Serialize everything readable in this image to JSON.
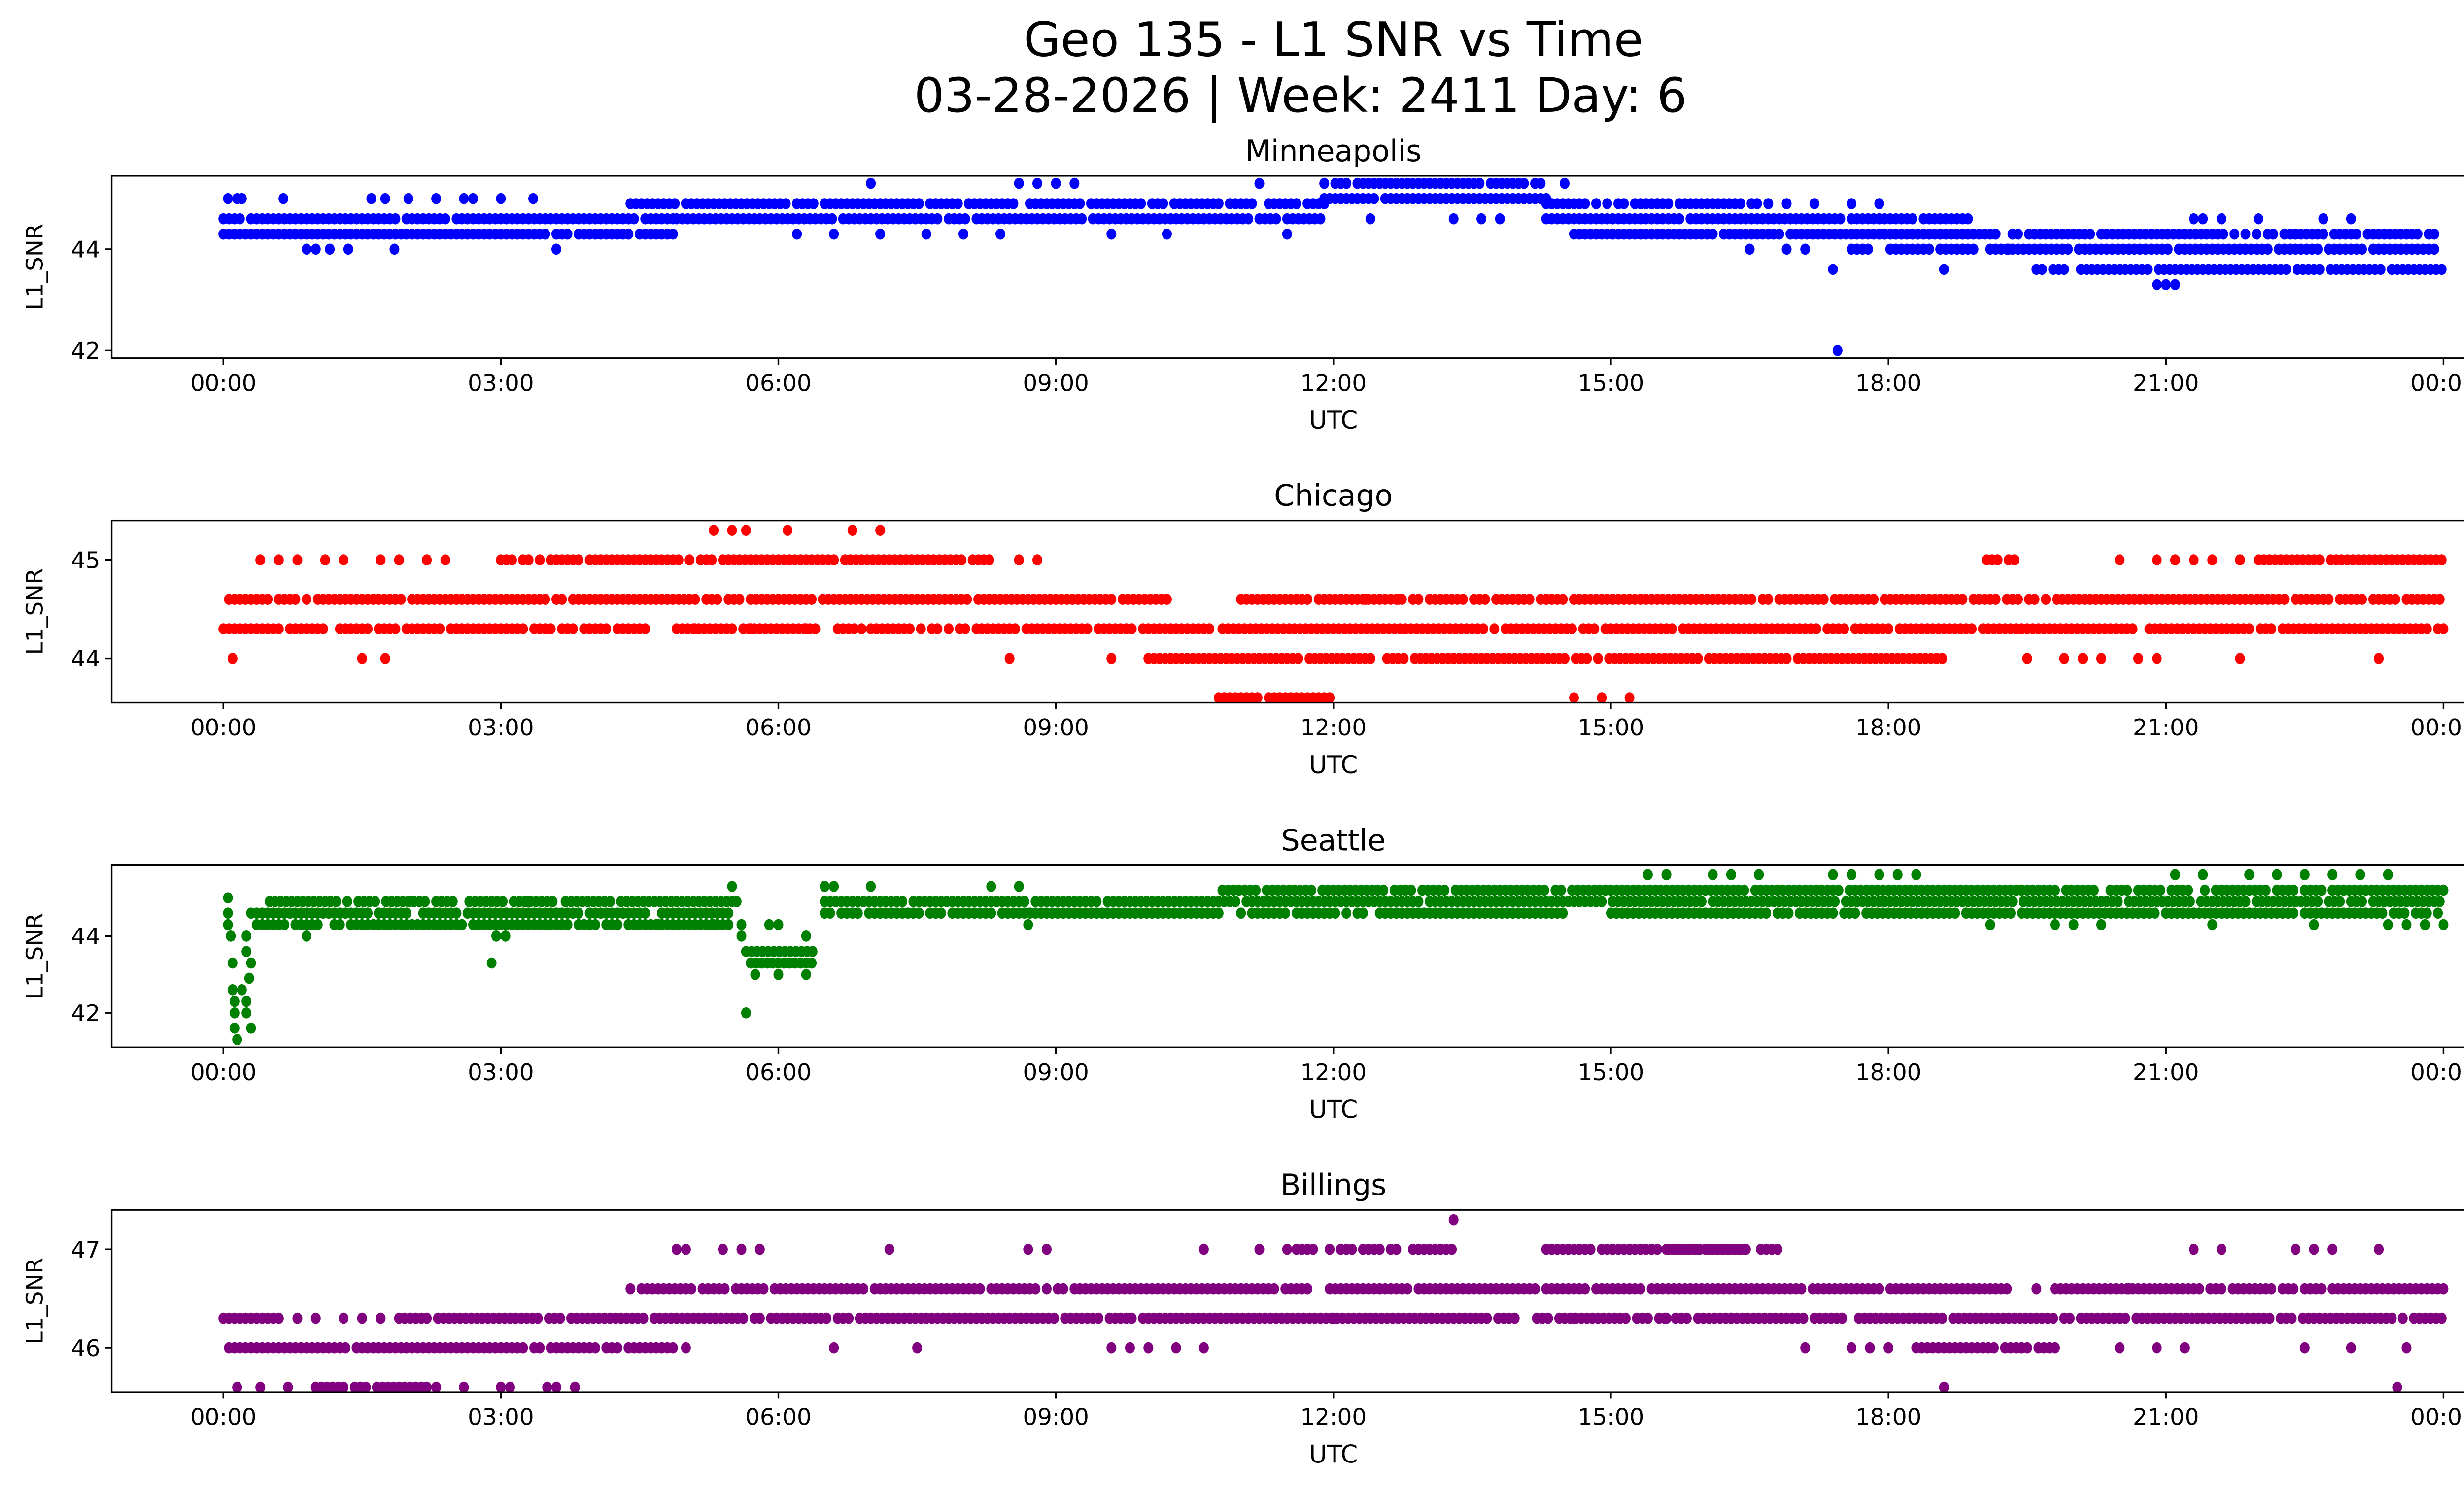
{
  "chart_data": {
    "type": "scatter",
    "title": "Geo 135 - L1 SNR vs Time",
    "subtitle": "03-28-2026 | Week: 2411 Day: 6",
    "x_tick_labels": [
      "00:00",
      "03:00",
      "06:00",
      "09:00",
      "12:00",
      "15:00",
      "18:00",
      "21:00",
      "00:00"
    ],
    "x_range_hours": [
      -1.2,
      25.2
    ],
    "xlabel": "UTC",
    "ylabel": "L1_SNR",
    "grid": false,
    "legend": "none",
    "panels": [
      {
        "name": "Minneapolis",
        "color": "#0000ff",
        "ylim": [
          41.85,
          45.45
        ],
        "yticks": [
          42,
          44
        ],
        "runs": [
          [
            0.0,
            4.9,
            44.3
          ],
          [
            0.0,
            4.9,
            44.6
          ],
          [
            4.9,
            11.9,
            44.6
          ],
          [
            4.4,
            11.9,
            44.9
          ],
          [
            11.9,
            14.3,
            45.0
          ],
          [
            11.9,
            14.3,
            45.3
          ],
          [
            14.3,
            16.6,
            44.9
          ],
          [
            14.3,
            18.9,
            44.6
          ],
          [
            14.6,
            18.9,
            44.3
          ],
          [
            17.9,
            24.0,
            44.3
          ],
          [
            17.6,
            24.0,
            44.0
          ],
          [
            19.6,
            24.0,
            43.6
          ]
        ],
        "points": [
          [
            0.05,
            45.0
          ],
          [
            0.15,
            45.0
          ],
          [
            0.2,
            45.0
          ],
          [
            0.65,
            45.0
          ],
          [
            1.6,
            45.0
          ],
          [
            1.75,
            45.0
          ],
          [
            2.0,
            45.0
          ],
          [
            2.3,
            45.0
          ],
          [
            2.6,
            45.0
          ],
          [
            2.7,
            45.0
          ],
          [
            3.0,
            45.0
          ],
          [
            3.35,
            45.0
          ],
          [
            0.9,
            44.0
          ],
          [
            1.0,
            44.0
          ],
          [
            1.15,
            44.0
          ],
          [
            1.35,
            44.0
          ],
          [
            1.85,
            44.0
          ],
          [
            3.6,
            44.0
          ],
          [
            7.0,
            45.3
          ],
          [
            8.6,
            45.3
          ],
          [
            8.8,
            45.3
          ],
          [
            9.0,
            45.3
          ],
          [
            9.2,
            45.3
          ],
          [
            11.2,
            45.3
          ],
          [
            14.5,
            45.3
          ],
          [
            6.2,
            44.3
          ],
          [
            6.6,
            44.3
          ],
          [
            7.1,
            44.3
          ],
          [
            7.6,
            44.3
          ],
          [
            8.0,
            44.3
          ],
          [
            8.4,
            44.3
          ],
          [
            9.6,
            44.3
          ],
          [
            10.2,
            44.3
          ],
          [
            11.5,
            44.3
          ],
          [
            12.4,
            44.6
          ],
          [
            13.3,
            44.6
          ],
          [
            13.6,
            44.6
          ],
          [
            13.8,
            44.6
          ],
          [
            15.5,
            44.9
          ],
          [
            16.7,
            44.9
          ],
          [
            16.9,
            44.9
          ],
          [
            17.2,
            44.9
          ],
          [
            17.6,
            44.9
          ],
          [
            17.9,
            44.9
          ],
          [
            16.5,
            44.0
          ],
          [
            16.9,
            44.0
          ],
          [
            17.1,
            44.0
          ],
          [
            17.4,
            43.6
          ],
          [
            17.45,
            42.0
          ],
          [
            18.6,
            43.6
          ],
          [
            18.8,
            44.0
          ],
          [
            19.3,
            44.0
          ],
          [
            20.9,
            43.3
          ],
          [
            21.0,
            43.3
          ],
          [
            21.1,
            43.3
          ],
          [
            21.3,
            44.6
          ],
          [
            21.4,
            44.6
          ],
          [
            21.6,
            44.6
          ],
          [
            22.0,
            44.6
          ],
          [
            22.7,
            44.6
          ],
          [
            23.0,
            44.6
          ]
        ]
      },
      {
        "name": "Chicago",
        "color": "#ff0000",
        "ylim": [
          43.55,
          45.4
        ],
        "yticks": [
          44,
          45
        ],
        "runs": [
          [
            0.0,
            10.2,
            44.6
          ],
          [
            0.0,
            4.6,
            44.3
          ],
          [
            4.9,
            10.7,
            44.3
          ],
          [
            10.8,
            24.0,
            44.3
          ],
          [
            11.0,
            24.0,
            44.6
          ],
          [
            3.0,
            8.3,
            45.0
          ],
          [
            10.0,
            13.8,
            44.0
          ],
          [
            13.0,
            18.6,
            44.0
          ],
          [
            10.7,
            11.2,
            43.6
          ],
          [
            11.3,
            12.0,
            43.6
          ],
          [
            22.0,
            24.0,
            45.0
          ],
          [
            19.0,
            19.4,
            45.0
          ]
        ],
        "points": [
          [
            0.1,
            44.0
          ],
          [
            1.5,
            44.0
          ],
          [
            1.75,
            44.0
          ],
          [
            8.5,
            44.0
          ],
          [
            9.6,
            44.0
          ],
          [
            19.5,
            44.0
          ],
          [
            19.9,
            44.0
          ],
          [
            20.1,
            44.0
          ],
          [
            20.3,
            44.0
          ],
          [
            20.7,
            44.0
          ],
          [
            20.9,
            44.0
          ],
          [
            21.8,
            44.0
          ],
          [
            23.3,
            44.0
          ],
          [
            0.4,
            45.0
          ],
          [
            0.6,
            45.0
          ],
          [
            0.8,
            45.0
          ],
          [
            1.1,
            45.0
          ],
          [
            1.3,
            45.0
          ],
          [
            1.7,
            45.0
          ],
          [
            1.9,
            45.0
          ],
          [
            2.2,
            45.0
          ],
          [
            2.4,
            45.0
          ],
          [
            8.6,
            45.0
          ],
          [
            8.8,
            45.0
          ],
          [
            5.3,
            45.3
          ],
          [
            5.5,
            45.3
          ],
          [
            5.65,
            45.3
          ],
          [
            6.1,
            45.3
          ],
          [
            6.8,
            45.3
          ],
          [
            7.1,
            45.3
          ],
          [
            20.5,
            45.0
          ],
          [
            20.9,
            45.0
          ],
          [
            21.1,
            45.0
          ],
          [
            21.3,
            45.0
          ],
          [
            21.5,
            45.0
          ],
          [
            21.8,
            45.0
          ],
          [
            5.1,
            44.3
          ],
          [
            5.7,
            44.3
          ],
          [
            6.3,
            44.3
          ],
          [
            6.9,
            44.3
          ],
          [
            7.3,
            44.3
          ],
          [
            12.2,
            44.6
          ],
          [
            12.35,
            44.6
          ],
          [
            12.7,
            44.6
          ],
          [
            14.0,
            44.6
          ],
          [
            14.3,
            44.6
          ],
          [
            14.6,
            44.6
          ],
          [
            14.6,
            43.6
          ],
          [
            14.9,
            43.6
          ],
          [
            15.2,
            43.6
          ]
        ]
      },
      {
        "name": "Seattle",
        "color": "#008000",
        "ylim": [
          41.1,
          45.85
        ],
        "yticks": [
          42,
          44
        ],
        "runs": [
          [
            0.3,
            5.5,
            44.6
          ],
          [
            0.3,
            5.5,
            44.3
          ],
          [
            0.5,
            3.6,
            44.9
          ],
          [
            3.7,
            5.5,
            44.9
          ],
          [
            6.5,
            10.8,
            44.6
          ],
          [
            6.5,
            24.0,
            44.9
          ],
          [
            10.8,
            24.0,
            45.2
          ],
          [
            15.0,
            24.0,
            44.6
          ],
          [
            11.0,
            14.5,
            44.6
          ],
          [
            5.65,
            6.4,
            43.6
          ],
          [
            5.7,
            6.4,
            43.3
          ]
        ],
        "points": [
          [
            0.05,
            45.0
          ],
          [
            0.05,
            44.6
          ],
          [
            0.05,
            44.3
          ],
          [
            0.08,
            44.0
          ],
          [
            0.1,
            43.3
          ],
          [
            0.1,
            42.6
          ],
          [
            0.12,
            42.3
          ],
          [
            0.12,
            42.0
          ],
          [
            0.12,
            41.6
          ],
          [
            0.15,
            41.3
          ],
          [
            0.2,
            42.6
          ],
          [
            0.25,
            42.3
          ],
          [
            0.25,
            42.0
          ],
          [
            0.3,
            41.6
          ],
          [
            0.25,
            43.6
          ],
          [
            0.25,
            44.0
          ],
          [
            0.28,
            42.9
          ],
          [
            0.3,
            43.3
          ],
          [
            0.9,
            44.0
          ],
          [
            2.9,
            43.3
          ],
          [
            2.95,
            44.0
          ],
          [
            3.05,
            44.0
          ],
          [
            3.3,
            44.9
          ],
          [
            4.7,
            44.3
          ],
          [
            5.3,
            44.3
          ],
          [
            5.5,
            45.3
          ],
          [
            5.55,
            44.9
          ],
          [
            5.6,
            44.3
          ],
          [
            5.6,
            44.0
          ],
          [
            5.65,
            42.0
          ],
          [
            5.9,
            44.3
          ],
          [
            6.0,
            44.3
          ],
          [
            6.3,
            44.0
          ],
          [
            6.0,
            43.0
          ],
          [
            6.3,
            43.0
          ],
          [
            5.75,
            43.0
          ],
          [
            6.5,
            45.3
          ],
          [
            6.6,
            45.3
          ],
          [
            7.0,
            45.3
          ],
          [
            8.3,
            45.3
          ],
          [
            8.6,
            45.3
          ],
          [
            8.7,
            44.3
          ],
          [
            15.4,
            45.6
          ],
          [
            15.6,
            45.6
          ],
          [
            16.1,
            45.6
          ],
          [
            16.3,
            45.6
          ],
          [
            16.6,
            45.6
          ],
          [
            17.4,
            45.6
          ],
          [
            17.6,
            45.6
          ],
          [
            17.9,
            45.6
          ],
          [
            18.1,
            45.6
          ],
          [
            18.3,
            45.6
          ],
          [
            21.1,
            45.6
          ],
          [
            21.4,
            45.6
          ],
          [
            21.9,
            45.6
          ],
          [
            22.2,
            45.6
          ],
          [
            22.5,
            45.6
          ],
          [
            22.8,
            45.6
          ],
          [
            23.1,
            45.6
          ],
          [
            23.4,
            45.6
          ],
          [
            19.1,
            44.3
          ],
          [
            19.8,
            44.3
          ],
          [
            20.0,
            44.3
          ],
          [
            20.3,
            44.3
          ],
          [
            21.5,
            44.3
          ],
          [
            22.6,
            44.3
          ],
          [
            23.4,
            44.3
          ],
          [
            23.6,
            44.3
          ],
          [
            23.8,
            44.3
          ],
          [
            24.0,
            44.3
          ]
        ]
      },
      {
        "name": "Billings",
        "color": "#800080",
        "ylim": [
          45.55,
          47.4
        ],
        "yticks": [
          46,
          47
        ],
        "runs": [
          [
            0.0,
            4.9,
            46.0
          ],
          [
            0.0,
            0.6,
            46.3
          ],
          [
            1.9,
            14.0,
            46.3
          ],
          [
            4.4,
            19.3,
            46.6
          ],
          [
            14.2,
            24.0,
            46.3
          ],
          [
            19.8,
            24.0,
            46.6
          ],
          [
            11.6,
            13.3,
            47.0
          ],
          [
            14.3,
            16.5,
            47.0
          ],
          [
            15.6,
            16.8,
            47.0
          ],
          [
            18.3,
            19.8,
            46.0
          ],
          [
            1.0,
            2.2,
            45.6
          ]
        ],
        "points": [
          [
            0.15,
            45.6
          ],
          [
            0.4,
            45.6
          ],
          [
            0.7,
            45.6
          ],
          [
            2.3,
            45.6
          ],
          [
            2.6,
            45.6
          ],
          [
            3.0,
            45.6
          ],
          [
            3.1,
            45.6
          ],
          [
            3.5,
            45.6
          ],
          [
            3.6,
            45.6
          ],
          [
            3.8,
            45.6
          ],
          [
            0.8,
            46.3
          ],
          [
            1.0,
            46.3
          ],
          [
            1.3,
            46.3
          ],
          [
            1.5,
            46.3
          ],
          [
            1.7,
            46.3
          ],
          [
            5.0,
            46.0
          ],
          [
            6.6,
            46.0
          ],
          [
            7.5,
            46.0
          ],
          [
            9.6,
            46.0
          ],
          [
            9.8,
            46.0
          ],
          [
            10.0,
            46.0
          ],
          [
            10.3,
            46.0
          ],
          [
            10.6,
            46.0
          ],
          [
            4.9,
            47.0
          ],
          [
            5.0,
            47.0
          ],
          [
            5.4,
            47.0
          ],
          [
            5.6,
            47.0
          ],
          [
            5.8,
            47.0
          ],
          [
            7.2,
            47.0
          ],
          [
            8.7,
            47.0
          ],
          [
            8.9,
            47.0
          ],
          [
            10.6,
            47.0
          ],
          [
            11.2,
            47.0
          ],
          [
            11.5,
            47.0
          ],
          [
            13.3,
            47.3
          ],
          [
            12.0,
            46.3
          ],
          [
            14.6,
            46.3
          ],
          [
            15.6,
            46.3
          ],
          [
            16.3,
            46.3
          ],
          [
            17.1,
            46.0
          ],
          [
            17.6,
            46.0
          ],
          [
            17.8,
            46.0
          ],
          [
            18.0,
            46.0
          ],
          [
            18.6,
            45.6
          ],
          [
            20.5,
            46.0
          ],
          [
            20.9,
            46.0
          ],
          [
            21.2,
            46.0
          ],
          [
            22.5,
            46.0
          ],
          [
            23.0,
            46.0
          ],
          [
            23.5,
            45.6
          ],
          [
            23.6,
            46.0
          ],
          [
            21.3,
            47.0
          ],
          [
            21.6,
            47.0
          ],
          [
            22.4,
            47.0
          ],
          [
            22.6,
            47.0
          ],
          [
            22.8,
            47.0
          ],
          [
            23.3,
            47.0
          ],
          [
            19.6,
            46.6
          ],
          [
            20.6,
            46.6
          ]
        ]
      }
    ]
  }
}
